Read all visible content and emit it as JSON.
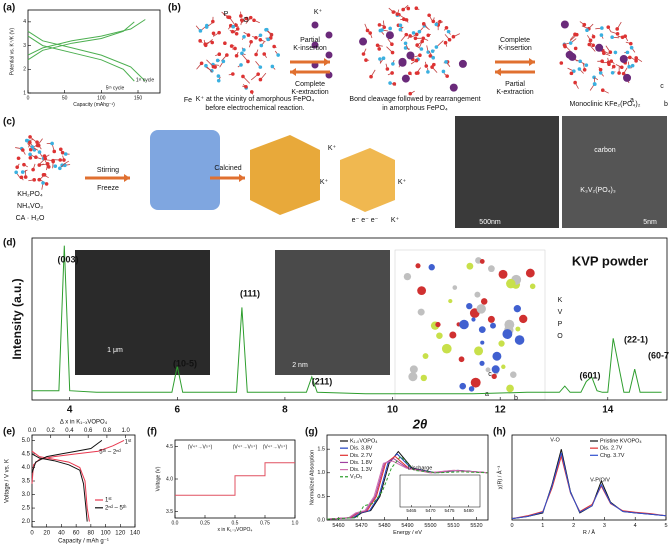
{
  "panels": {
    "a": {
      "label": "(a)",
      "chart": {
        "type": "line",
        "xlabel": "Capacity (mAhg⁻¹)",
        "ylabel": "Potential vs. K⁺/K (V)",
        "xlim": [
          0,
          180
        ],
        "xticks": [
          0,
          50,
          100,
          150
        ],
        "ylim": [
          1,
          4.5
        ],
        "yticks": [
          1,
          2,
          3,
          4
        ],
        "annotations": [
          "5ᵗʰ cycle",
          "1ˢᵗ cycle"
        ],
        "series": [
          {
            "color": "#4caf50",
            "x": [
              0,
              20,
              60,
              100,
              140,
              160
            ],
            "values": [
              3.6,
              3.2,
              2.9,
              2.6,
              2.1,
              1.5
            ]
          },
          {
            "color": "#4caf50",
            "x": [
              0,
              20,
              60,
              100,
              140,
              160
            ],
            "values": [
              2.6,
              2.9,
              3.2,
              3.4,
              3.7,
              4.1
            ]
          },
          {
            "color": "#4caf50",
            "x": [
              0,
              20,
              60,
              100,
              130,
              145
            ],
            "values": [
              3.4,
              3.0,
              2.7,
              2.4,
              2.0,
              1.5
            ]
          },
          {
            "color": "#4caf50",
            "x": [
              0,
              20,
              60,
              100,
              130,
              145
            ],
            "values": [
              2.4,
              2.8,
              3.1,
              3.3,
              3.6,
              4.0
            ]
          }
        ]
      }
    },
    "b": {
      "label": "(b)",
      "texts": [
        "P",
        "O",
        "K⁺",
        "Fe",
        "Partial",
        "K-insertion",
        "Complete",
        "K-extraction",
        "Complete",
        "K-insertion",
        "Partial",
        "K-extraction",
        "K⁺ at the vicinity of amorphous FePO₄",
        "before electrochemical reaction.",
        "Bond cleavage followed by rearrangement",
        "in amorphous FePO₄",
        "Monoclinic KFe₂(PO₄)₂",
        "a",
        "b",
        "c"
      ]
    },
    "c": {
      "label": "(c)",
      "texts": [
        "KH₂PO₄",
        "NH₄VO₃",
        "CA · H₂O",
        "Stirring",
        "Freeze",
        "Calcined",
        "K⁺",
        "K⁺",
        "K⁺",
        "K⁺",
        "e⁻  e⁻  e⁻",
        "500nm",
        "carbon",
        "K₃V₂(PO₄)₃",
        "5nm"
      ]
    },
    "d": {
      "label": "(d)",
      "texts": [
        "1 μm",
        "2 nm",
        "K",
        "V",
        "P",
        "O",
        "a",
        "b",
        "c"
      ],
      "chart": {
        "type": "line",
        "title": "KVP powder",
        "xlabel": "2θ",
        "ylabel": "Intensity (a.u.)",
        "xlim": [
          3.3,
          15.1
        ],
        "xticks": [
          4,
          6,
          8,
          10,
          12,
          14
        ],
        "ylim": [
          0,
          1.05
        ],
        "annotations": [
          "(003)",
          "(10-5)",
          "(111)",
          "(211)",
          "(601)",
          "(22-1)",
          "(60-7)"
        ],
        "series": [
          {
            "color": "#2e9e2e",
            "x": [
              3.3,
              3.8,
              3.9,
              4.0,
              4.5,
              5.5,
              5.9,
              6.0,
              6.1,
              6.8,
              7.1,
              7.2,
              7.3,
              7.8,
              8.4,
              8.5,
              8.6,
              9.5,
              10.5,
              11.5,
              12.5,
              13.1,
              13.2,
              13.3,
              13.5,
              13.6,
              13.7,
              13.8,
              13.9,
              14.0,
              14.1,
              14.3,
              14.4,
              14.5,
              14.6,
              15.0
            ],
            "values": [
              0.06,
              0.06,
              1.0,
              0.06,
              0.05,
              0.05,
              0.05,
              0.22,
              0.05,
              0.05,
              0.05,
              0.6,
              0.05,
              0.05,
              0.05,
              0.15,
              0.05,
              0.04,
              0.04,
              0.04,
              0.05,
              0.05,
              0.09,
              0.05,
              0.05,
              0.12,
              0.15,
              0.06,
              0.05,
              0.05,
              0.4,
              0.05,
              0.05,
              0.2,
              0.05,
              0.05
            ]
          }
        ]
      }
    },
    "e": {
      "label": "(e)",
      "chart": {
        "type": "line",
        "xlabel": "Capacity / mAh g⁻¹",
        "ylabel": "Voltage / V vs. K",
        "x2label": "Δ x in K₁₋ₓVOPO₄",
        "xlim": [
          0,
          140
        ],
        "xticks": [
          0,
          20,
          40,
          60,
          80,
          100,
          120,
          140
        ],
        "x2lim": [
          0,
          1.1
        ],
        "x2ticks": [
          {
            "value": 0,
            "label": "0.0"
          },
          0.2,
          0.4,
          0.6,
          0.8,
          {
            "value": 1,
            "label": "1.0"
          }
        ],
        "ylim": [
          1.8,
          5.2
        ],
        "yticks": [
          {
            "value": 2,
            "label": "2.0"
          },
          2.5,
          {
            "value": 3,
            "label": "3.0"
          },
          3.5,
          {
            "value": 4,
            "label": "4.0"
          },
          4.5,
          {
            "value": 5,
            "label": "5.0"
          }
        ],
        "annotations": [
          "5ᵗʰ – 2ⁿᵈ",
          "1ˢᵗ"
        ],
        "series": [
          {
            "name": "1ˢᵗ",
            "color": "#e8384f",
            "x": [
              0,
              2,
              10,
              30,
              60,
              90,
              110,
              125
            ],
            "values": [
              3.4,
              4.1,
              4.3,
              4.4,
              4.5,
              4.6,
              4.8,
              5.0
            ]
          },
          {
            "color": "#e8384f",
            "x": [
              0,
              10,
              30,
              50,
              65,
              72,
              75,
              78
            ],
            "values": [
              4.6,
              4.4,
              4.3,
              4.2,
              4.0,
              3.5,
              2.5,
              2.0
            ]
          },
          {
            "name": "2ⁿᵈ – 5ᵗʰ",
            "color": "#111111",
            "x": [
              0,
              5,
              20,
              40,
              60,
              80,
              90,
              95
            ],
            "values": [
              3.8,
              4.2,
              4.4,
              4.5,
              4.6,
              4.7,
              4.9,
              5.0
            ]
          },
          {
            "color": "#111111",
            "x": [
              0,
              10,
              30,
              50,
              65,
              70,
              73,
              75
            ],
            "values": [
              4.5,
              4.35,
              4.25,
              4.1,
              3.9,
              3.4,
              2.6,
              2.0
            ]
          }
        ]
      }
    },
    "f": {
      "label": "(f)",
      "chart": {
        "type": "line",
        "xlabel": "x in K₁₋ₓVOPO₄",
        "ylabel": "Voltage (V)",
        "xlim": [
          0,
          1
        ],
        "xticks": [
          {
            "value": 0,
            "label": "0.0"
          },
          0.25,
          0.5,
          0.75,
          {
            "value": 1,
            "label": "1.0"
          }
        ],
        "ylim": [
          3.4,
          4.6
        ],
        "yticks": [
          3.5,
          {
            "value": 4,
            "label": "4.0"
          },
          4.5
        ],
        "annotations": [
          "(V⁴⁺→V⁵⁺)",
          "(V⁴⁺→V⁵⁺)",
          "(V⁴⁺→V⁵⁺)"
        ],
        "series": [
          {
            "color": "#e05060",
            "x": [
              0,
              0.5,
              0.5,
              0.75,
              0.75,
              1.0
            ],
            "values": [
              3.75,
              3.75,
              4.05,
              4.05,
              4.25,
              4.25
            ]
          }
        ]
      }
    },
    "g": {
      "label": "(g)",
      "inset_xticks": [
        5465,
        5470,
        5475,
        5480
      ],
      "chart": {
        "type": "line",
        "xlabel": "Energy / eV",
        "ylabel": "Normalized Absorption",
        "xlim": [
          5455,
          5525
        ],
        "xticks": [
          5460,
          5470,
          5480,
          5490,
          5500,
          5510,
          5520
        ],
        "ylim": [
          0,
          1.8
        ],
        "yticks": [
          {
            "value": 0,
            "label": "0.0"
          },
          0.5,
          {
            "value": 1,
            "label": "1.0"
          },
          1.5
        ],
        "annotations": [
          "Discharge"
        ],
        "series": [
          {
            "name": "K₁.₀VOPO₄",
            "color": "#111111",
            "x": [
              5455,
              5467,
              5470,
              5474,
              5478,
              5482,
              5486,
              5492,
              5502,
              5512,
              5525
            ],
            "values": [
              0.02,
              0.05,
              0.15,
              0.2,
              0.5,
              1.2,
              1.45,
              1.1,
              1.0,
              1.05,
              1.0
            ]
          },
          {
            "name": "Dis. 3.8V",
            "color": "#2040c0",
            "x": [
              5455,
              5466.5,
              5469.5,
              5473.5,
              5477.5,
              5481.5,
              5485.5,
              5491.5,
              5501.5,
              5511.5,
              5525
            ],
            "values": [
              0.02,
              0.05,
              0.15,
              0.2,
              0.5,
              1.2,
              1.4,
              1.1,
              1.0,
              1.05,
              1.0
            ]
          },
          {
            "name": "Dis. 2.7V",
            "color": "#e03030",
            "x": [
              5455,
              5465.5,
              5468.5,
              5472.5,
              5476.5,
              5480.5,
              5484.5,
              5490.5,
              5500.5,
              5510.5,
              5525
            ],
            "values": [
              0.02,
              0.05,
              0.15,
              0.2,
              0.5,
              1.2,
              1.35,
              1.1,
              1.0,
              1.05,
              1.0
            ]
          },
          {
            "name": "Dis. 1.8V",
            "color": "#a040a0",
            "x": [
              5455,
              5465,
              5468,
              5472,
              5476,
              5480,
              5484,
              5490,
              5500,
              5510,
              5525
            ],
            "values": [
              0.02,
              0.05,
              0.15,
              0.2,
              0.5,
              1.2,
              1.3,
              1.1,
              1.0,
              1.05,
              1.0
            ]
          },
          {
            "name": "Dis. 1.3V",
            "color": "#d070b0",
            "x": [
              5455,
              5464.5,
              5467.5,
              5471.5,
              5475.5,
              5479.5,
              5483.5,
              5489.5,
              5499.5,
              5509.5,
              5525
            ],
            "values": [
              0.02,
              0.05,
              0.15,
              0.2,
              0.5,
              1.2,
              1.25,
              1.1,
              1.0,
              1.05,
              1.0
            ]
          },
          {
            "name": "V₂O₅",
            "color": "#30a030",
            "dash": true,
            "x": [
              5455,
              5468,
              5471,
              5475,
              5479,
              5483,
              5487,
              5493,
              5503,
              5513,
              5525
            ],
            "values": [
              0.02,
              0.05,
              0.3,
              0.35,
              0.6,
              1.1,
              1.35,
              1.05,
              1.0,
              1.02,
              1.0
            ]
          }
        ]
      }
    },
    "h": {
      "label": "(h)",
      "chart": {
        "type": "line",
        "xlabel": "R / Å",
        "ylabel": "χ(R) / Å⁻³",
        "xlim": [
          0,
          5
        ],
        "xticks": [
          0,
          1,
          2,
          3,
          4,
          5
        ],
        "ylim": [
          0,
          12
        ],
        "annotations": [
          "V-O",
          "V-P/O/V"
        ],
        "series": [
          {
            "name": "Pristine KVOPO₄",
            "color": "#111111",
            "x": [
              0,
              0.5,
              1,
              1.3,
              1.6,
              1.9,
              2.2,
              2.6,
              2.9,
              3.2,
              3.6,
              4,
              4.5,
              5
            ],
            "values": [
              0.2,
              0.5,
              1,
              5,
              10,
              4,
              1,
              2,
              5.5,
              2.5,
              1.2,
              1,
              0.8,
              0.6
            ]
          },
          {
            "name": "Dis. 2.7V",
            "color": "#e03030",
            "x": [
              0,
              0.5,
              1,
              1.3,
              1.6,
              1.9,
              2.2,
              2.6,
              2.9,
              3.2,
              3.6,
              4,
              4.5,
              5
            ],
            "values": [
              0.2,
              0.6,
              1.2,
              4.5,
              9,
              3.8,
              1.2,
              2.2,
              4.8,
              2.3,
              1.3,
              1.1,
              0.9,
              0.6
            ]
          },
          {
            "name": "Chg. 3.7V",
            "color": "#3050d0",
            "x": [
              0,
              0.5,
              1,
              1.3,
              1.6,
              1.9,
              2.2,
              2.6,
              2.9,
              3.2,
              3.6,
              4,
              4.5,
              5
            ],
            "values": [
              0.2,
              0.5,
              1.1,
              4.8,
              9.5,
              3.9,
              1.1,
              2.0,
              5.0,
              2.4,
              1.2,
              1.0,
              0.8,
              0.6
            ]
          }
        ]
      }
    }
  }
}
